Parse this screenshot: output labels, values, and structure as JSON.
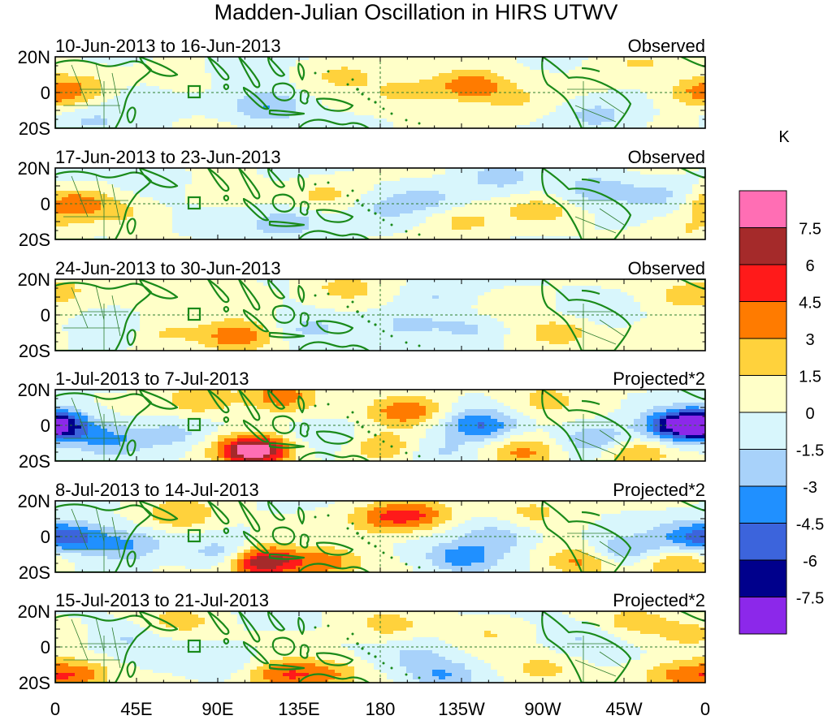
{
  "title": "Madden-Julian Oscillation in HIRS UTWV",
  "colorbar": {
    "unit": "K",
    "labels": [
      "7.5",
      "6",
      "4.5",
      "3",
      "1.5",
      "0",
      "-1.5",
      "-3",
      "-4.5",
      "-6",
      "-7.5"
    ],
    "colors": [
      "#ff6eb4",
      "#a52a2a",
      "#ff1a1a",
      "#ff7b00",
      "#ffd23c",
      "#ffffc8",
      "#d8f6fc",
      "#a8d2fa",
      "#2090ff",
      "#3c64dc",
      "#00008c",
      "#8c28ea"
    ]
  },
  "colors": {
    "coast": "#1a8a1a",
    "border": "#2e7d2e",
    "frame": "#000000",
    "equator": "#2e7d2e"
  },
  "panels": [
    {
      "period": "10-Jun-2013 to 16-Jun-2013",
      "kind": "Observed",
      "anoms": [
        [
          0,
          0,
          4
        ],
        [
          18,
          5,
          1
        ],
        [
          70,
          8,
          1.5
        ],
        [
          100,
          14,
          -1.5
        ],
        [
          118,
          -8,
          -3
        ],
        [
          160,
          10,
          2
        ],
        [
          195,
          0,
          2
        ],
        [
          230,
          4,
          4.5
        ],
        [
          255,
          -5,
          1.5
        ],
        [
          270,
          12,
          0
        ],
        [
          300,
          -12,
          -2
        ],
        [
          320,
          16,
          1.5
        ],
        [
          350,
          18,
          0.5
        ],
        [
          20,
          -15,
          -1.5
        ],
        [
          50,
          -3,
          -1.5
        ]
      ]
    },
    {
      "period": "17-Jun-2013 to 23-Jun-2013",
      "kind": "Observed",
      "anoms": [
        [
          10,
          0,
          4
        ],
        [
          40,
          -5,
          1.5
        ],
        [
          60,
          12,
          -1.5
        ],
        [
          90,
          8,
          1.5
        ],
        [
          130,
          -10,
          -2.5
        ],
        [
          150,
          5,
          2
        ],
        [
          180,
          -3,
          -1.5
        ],
        [
          205,
          3,
          -2
        ],
        [
          225,
          -10,
          2
        ],
        [
          245,
          15,
          -2
        ],
        [
          268,
          -4,
          2
        ],
        [
          300,
          8,
          -2.5
        ],
        [
          335,
          5,
          -2
        ],
        [
          350,
          -14,
          1.5
        ],
        [
          100,
          -15,
          -1
        ]
      ]
    },
    {
      "period": "24-Jun-2013 to 30-Jun-2013",
      "kind": "Observed",
      "anoms": [
        [
          5,
          15,
          1.5
        ],
        [
          30,
          -8,
          -1.5
        ],
        [
          60,
          -10,
          2
        ],
        [
          100,
          -12,
          4
        ],
        [
          140,
          -8,
          -2
        ],
        [
          100,
          8,
          1.5
        ],
        [
          160,
          15,
          2
        ],
        [
          195,
          -5,
          -1.5
        ],
        [
          210,
          10,
          -1.5
        ],
        [
          230,
          -8,
          -2
        ],
        [
          250,
          5,
          1.5
        ],
        [
          280,
          -10,
          2.5
        ],
        [
          300,
          5,
          -1.5
        ],
        [
          330,
          -15,
          1.5
        ],
        [
          350,
          10,
          2
        ]
      ]
    },
    {
      "period": "1-Jul-2013 to 7-Jul-2013",
      "kind": "Projected*2",
      "anoms": [
        [
          0,
          0,
          -7
        ],
        [
          30,
          -8,
          -3
        ],
        [
          65,
          -5,
          -2
        ],
        [
          80,
          14,
          3
        ],
        [
          125,
          16,
          4
        ],
        [
          110,
          -14,
          9
        ],
        [
          150,
          -5,
          -1.5
        ],
        [
          180,
          -12,
          3
        ],
        [
          195,
          8,
          4.5
        ],
        [
          215,
          -15,
          -2
        ],
        [
          235,
          0,
          -4.5
        ],
        [
          260,
          -15,
          3.5
        ],
        [
          272,
          15,
          2
        ],
        [
          300,
          -8,
          -3
        ],
        [
          320,
          -15,
          3
        ],
        [
          345,
          0,
          -6
        ]
      ]
    },
    {
      "period": "8-Jul-2013 to 14-Jul-2013",
      "kind": "Projected*2",
      "anoms": [
        [
          10,
          0,
          -4.5
        ],
        [
          40,
          -5,
          -3
        ],
        [
          70,
          12,
          3
        ],
        [
          95,
          -10,
          -3
        ],
        [
          115,
          -14,
          8
        ],
        [
          150,
          -15,
          4
        ],
        [
          180,
          10,
          3
        ],
        [
          200,
          12,
          4
        ],
        [
          225,
          -12,
          -4
        ],
        [
          245,
          0,
          -2.5
        ],
        [
          265,
          14,
          2
        ],
        [
          290,
          -14,
          3.5
        ],
        [
          315,
          -8,
          -3
        ],
        [
          345,
          -15,
          3
        ],
        [
          350,
          0,
          -3
        ]
      ]
    },
    {
      "period": "15-Jul-2013 to 21-Jul-2013",
      "kind": "Projected*2",
      "anoms": [
        [
          10,
          -16,
          4
        ],
        [
          40,
          5,
          -1.5
        ],
        [
          70,
          14,
          2
        ],
        [
          95,
          -8,
          -1.5
        ],
        [
          125,
          -16,
          4
        ],
        [
          150,
          -15,
          3
        ],
        [
          185,
          12,
          2
        ],
        [
          200,
          -5,
          -1.5
        ],
        [
          215,
          -16,
          -3
        ],
        [
          240,
          8,
          1.5
        ],
        [
          270,
          -12,
          2
        ],
        [
          290,
          5,
          -1.5
        ],
        [
          320,
          14,
          2
        ],
        [
          345,
          -16,
          3
        ],
        [
          350,
          8,
          2
        ]
      ]
    }
  ],
  "lat_labels": [
    "20N",
    "0",
    "20S"
  ],
  "lon_labels": [
    "0",
    "45E",
    "90E",
    "135E",
    "180",
    "135W",
    "90W",
    "45W",
    "0"
  ]
}
